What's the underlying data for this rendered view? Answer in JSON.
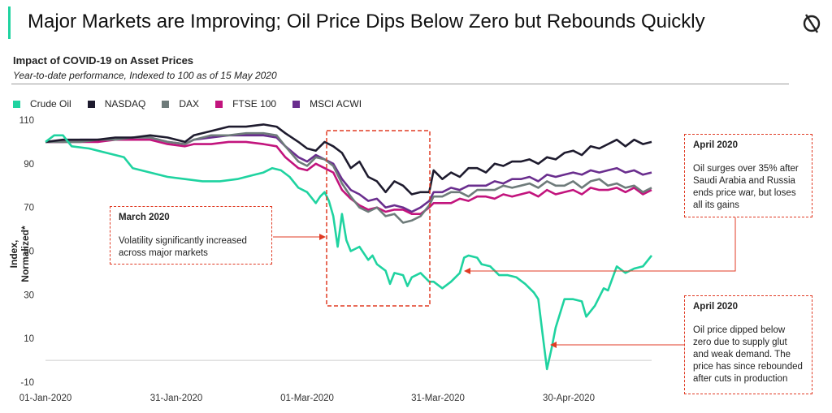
{
  "page": {
    "title": "Major Markets are Improving; Oil Price Dips Below Zero but Rebounds Quickly",
    "logo_icon": "circle-slash-logo-icon",
    "accent_color": "#1fd3a0"
  },
  "chart_data": {
    "type": "line",
    "title": "Impact of COVID-19 on Asset Prices",
    "subtitle": "Year-to-date performance, Indexed to 100 as of 15 May 2020",
    "ylabel": "Index, Normalized*",
    "xlabel": "",
    "ylim": [
      -10,
      110
    ],
    "yticks": [
      110,
      90,
      70,
      50,
      30,
      10,
      -10
    ],
    "xlim": [
      0,
      135
    ],
    "xticks": [
      {
        "day": 0,
        "label": "01-Jan-2020"
      },
      {
        "day": 30,
        "label": "31-Jan-2020"
      },
      {
        "day": 60,
        "label": "01-Mar-2020"
      },
      {
        "day": 90,
        "label": "31-Mar-2020"
      },
      {
        "day": 120,
        "label": "30-Apr-2020"
      }
    ],
    "legend_position": "top-left",
    "series": [
      {
        "name": "Crude Oil",
        "color": "#1fd3a0",
        "points": [
          [
            0,
            100
          ],
          [
            2,
            103
          ],
          [
            4,
            103
          ],
          [
            6,
            98
          ],
          [
            10,
            97
          ],
          [
            14,
            95
          ],
          [
            18,
            93
          ],
          [
            20,
            88
          ],
          [
            24,
            86
          ],
          [
            28,
            84
          ],
          [
            32,
            83
          ],
          [
            36,
            82
          ],
          [
            40,
            82
          ],
          [
            44,
            83
          ],
          [
            48,
            85
          ],
          [
            50,
            86
          ],
          [
            52,
            88
          ],
          [
            54,
            87
          ],
          [
            56,
            84
          ],
          [
            58,
            79
          ],
          [
            60,
            77
          ],
          [
            62,
            72
          ],
          [
            63,
            75
          ],
          [
            64,
            77
          ],
          [
            65,
            73
          ],
          [
            66,
            66
          ],
          [
            67,
            52
          ],
          [
            68,
            67
          ],
          [
            69,
            55
          ],
          [
            70,
            50
          ],
          [
            72,
            52
          ],
          [
            74,
            46
          ],
          [
            75,
            48
          ],
          [
            76,
            44
          ],
          [
            78,
            41
          ],
          [
            79,
            35
          ],
          [
            80,
            40
          ],
          [
            82,
            39
          ],
          [
            83,
            34
          ],
          [
            84,
            38
          ],
          [
            86,
            40
          ],
          [
            88,
            36
          ],
          [
            89,
            36
          ],
          [
            91,
            33
          ],
          [
            93,
            36
          ],
          [
            95,
            40
          ],
          [
            96,
            47
          ],
          [
            97,
            48
          ],
          [
            99,
            47
          ],
          [
            100,
            44
          ],
          [
            102,
            43
          ],
          [
            104,
            39
          ],
          [
            106,
            39
          ],
          [
            108,
            38
          ],
          [
            110,
            35
          ],
          [
            112,
            31
          ],
          [
            113,
            28
          ],
          [
            114,
            12
          ],
          [
            115,
            -4
          ],
          [
            116,
            5
          ],
          [
            117,
            15
          ],
          [
            119,
            28
          ],
          [
            121,
            28
          ],
          [
            123,
            27
          ],
          [
            124,
            20
          ],
          [
            126,
            25
          ],
          [
            128,
            33
          ],
          [
            129,
            32
          ],
          [
            131,
            43
          ],
          [
            133,
            40
          ],
          [
            135,
            42
          ],
          [
            137,
            43
          ],
          [
            139,
            48
          ]
        ]
      },
      {
        "name": "NASDAQ",
        "color": "#1e1b2e",
        "points": [
          [
            0,
            100
          ],
          [
            4,
            101
          ],
          [
            8,
            101
          ],
          [
            12,
            101
          ],
          [
            16,
            102
          ],
          [
            20,
            102
          ],
          [
            24,
            103
          ],
          [
            28,
            102
          ],
          [
            32,
            100
          ],
          [
            34,
            103
          ],
          [
            38,
            105
          ],
          [
            42,
            107
          ],
          [
            46,
            107
          ],
          [
            50,
            108
          ],
          [
            53,
            107
          ],
          [
            55,
            104
          ],
          [
            58,
            100
          ],
          [
            60,
            97
          ],
          [
            62,
            96
          ],
          [
            64,
            100
          ],
          [
            66,
            98
          ],
          [
            68,
            95
          ],
          [
            70,
            88
          ],
          [
            72,
            91
          ],
          [
            74,
            84
          ],
          [
            76,
            82
          ],
          [
            78,
            77
          ],
          [
            80,
            82
          ],
          [
            82,
            80
          ],
          [
            84,
            76
          ],
          [
            86,
            77
          ],
          [
            88,
            77
          ],
          [
            89,
            87
          ],
          [
            91,
            83
          ],
          [
            93,
            86
          ],
          [
            95,
            84
          ],
          [
            97,
            88
          ],
          [
            99,
            88
          ],
          [
            101,
            86
          ],
          [
            103,
            90
          ],
          [
            105,
            89
          ],
          [
            107,
            91
          ],
          [
            109,
            91
          ],
          [
            111,
            92
          ],
          [
            113,
            90
          ],
          [
            115,
            93
          ],
          [
            117,
            92
          ],
          [
            119,
            95
          ],
          [
            121,
            96
          ],
          [
            123,
            94
          ],
          [
            125,
            98
          ],
          [
            127,
            97
          ],
          [
            129,
            99
          ],
          [
            131,
            101
          ],
          [
            133,
            98
          ],
          [
            135,
            101
          ],
          [
            137,
            99
          ],
          [
            139,
            100
          ]
        ]
      },
      {
        "name": "DAX",
        "color": "#6e7b7a",
        "points": [
          [
            0,
            100
          ],
          [
            4,
            100
          ],
          [
            8,
            100
          ],
          [
            12,
            101
          ],
          [
            16,
            101
          ],
          [
            20,
            102
          ],
          [
            24,
            102
          ],
          [
            28,
            100
          ],
          [
            32,
            99
          ],
          [
            34,
            101
          ],
          [
            38,
            103
          ],
          [
            42,
            103
          ],
          [
            46,
            104
          ],
          [
            50,
            104
          ],
          [
            53,
            103
          ],
          [
            55,
            98
          ],
          [
            58,
            91
          ],
          [
            60,
            89
          ],
          [
            62,
            93
          ],
          [
            64,
            92
          ],
          [
            66,
            89
          ],
          [
            68,
            81
          ],
          [
            70,
            75
          ],
          [
            72,
            70
          ],
          [
            74,
            68
          ],
          [
            76,
            70
          ],
          [
            78,
            66
          ],
          [
            80,
            67
          ],
          [
            82,
            63
          ],
          [
            84,
            64
          ],
          [
            86,
            66
          ],
          [
            88,
            71
          ],
          [
            89,
            75
          ],
          [
            91,
            75
          ],
          [
            93,
            77
          ],
          [
            95,
            77
          ],
          [
            97,
            75
          ],
          [
            99,
            78
          ],
          [
            101,
            78
          ],
          [
            103,
            78
          ],
          [
            105,
            80
          ],
          [
            107,
            79
          ],
          [
            109,
            80
          ],
          [
            111,
            81
          ],
          [
            113,
            79
          ],
          [
            115,
            82
          ],
          [
            117,
            80
          ],
          [
            119,
            80
          ],
          [
            121,
            82
          ],
          [
            123,
            79
          ],
          [
            125,
            82
          ],
          [
            127,
            83
          ],
          [
            129,
            80
          ],
          [
            131,
            81
          ],
          [
            133,
            79
          ],
          [
            135,
            80
          ],
          [
            137,
            77
          ],
          [
            139,
            79
          ]
        ]
      },
      {
        "name": "FTSE 100",
        "color": "#c2147d",
        "points": [
          [
            0,
            100
          ],
          [
            4,
            100
          ],
          [
            8,
            100
          ],
          [
            12,
            100
          ],
          [
            16,
            101
          ],
          [
            20,
            101
          ],
          [
            24,
            101
          ],
          [
            28,
            99
          ],
          [
            32,
            98
          ],
          [
            34,
            99
          ],
          [
            38,
            99
          ],
          [
            42,
            100
          ],
          [
            46,
            100
          ],
          [
            50,
            99
          ],
          [
            53,
            98
          ],
          [
            55,
            93
          ],
          [
            58,
            88
          ],
          [
            60,
            87
          ],
          [
            62,
            90
          ],
          [
            64,
            88
          ],
          [
            66,
            86
          ],
          [
            68,
            78
          ],
          [
            70,
            74
          ],
          [
            72,
            71
          ],
          [
            74,
            69
          ],
          [
            76,
            70
          ],
          [
            78,
            68
          ],
          [
            80,
            69
          ],
          [
            82,
            69
          ],
          [
            84,
            67
          ],
          [
            86,
            67
          ],
          [
            88,
            70
          ],
          [
            89,
            72
          ],
          [
            91,
            72
          ],
          [
            93,
            72
          ],
          [
            95,
            74
          ],
          [
            97,
            73
          ],
          [
            99,
            75
          ],
          [
            101,
            75
          ],
          [
            103,
            74
          ],
          [
            105,
            76
          ],
          [
            107,
            75
          ],
          [
            109,
            76
          ],
          [
            111,
            77
          ],
          [
            113,
            75
          ],
          [
            115,
            78
          ],
          [
            117,
            76
          ],
          [
            119,
            77
          ],
          [
            121,
            78
          ],
          [
            123,
            76
          ],
          [
            125,
            79
          ],
          [
            127,
            78
          ],
          [
            129,
            78
          ],
          [
            131,
            79
          ],
          [
            133,
            77
          ],
          [
            135,
            79
          ],
          [
            137,
            76
          ],
          [
            139,
            78
          ]
        ]
      },
      {
        "name": "MSCI ACWI",
        "color": "#6a2e8e",
        "points": [
          [
            0,
            100
          ],
          [
            4,
            100
          ],
          [
            8,
            101
          ],
          [
            12,
            101
          ],
          [
            16,
            101
          ],
          [
            20,
            102
          ],
          [
            24,
            102
          ],
          [
            28,
            100
          ],
          [
            32,
            99
          ],
          [
            34,
            101
          ],
          [
            38,
            102
          ],
          [
            42,
            103
          ],
          [
            46,
            103
          ],
          [
            50,
            103
          ],
          [
            53,
            102
          ],
          [
            55,
            98
          ],
          [
            58,
            93
          ],
          [
            60,
            91
          ],
          [
            62,
            94
          ],
          [
            64,
            92
          ],
          [
            66,
            90
          ],
          [
            68,
            83
          ],
          [
            70,
            78
          ],
          [
            72,
            76
          ],
          [
            74,
            73
          ],
          [
            76,
            74
          ],
          [
            78,
            70
          ],
          [
            80,
            71
          ],
          [
            82,
            70
          ],
          [
            84,
            68
          ],
          [
            86,
            70
          ],
          [
            88,
            73
          ],
          [
            89,
            77
          ],
          [
            91,
            77
          ],
          [
            93,
            79
          ],
          [
            95,
            78
          ],
          [
            97,
            80
          ],
          [
            99,
            80
          ],
          [
            101,
            80
          ],
          [
            103,
            82
          ],
          [
            105,
            81
          ],
          [
            107,
            83
          ],
          [
            109,
            83
          ],
          [
            111,
            84
          ],
          [
            113,
            82
          ],
          [
            115,
            85
          ],
          [
            117,
            84
          ],
          [
            119,
            85
          ],
          [
            121,
            86
          ],
          [
            123,
            85
          ],
          [
            125,
            87
          ],
          [
            127,
            86
          ],
          [
            129,
            87
          ],
          [
            131,
            88
          ],
          [
            133,
            86
          ],
          [
            135,
            87
          ],
          [
            137,
            85
          ],
          [
            139,
            86
          ]
        ]
      }
    ]
  },
  "callouts": [
    {
      "title": "March 2020",
      "text": "Volatility significantly increased across major markets"
    },
    {
      "title": "April 2020",
      "text": "Oil surges over 35%  after Saudi Arabia and Russia ends price war, but loses all its gains"
    },
    {
      "title": "April 2020",
      "text": "Oil price dipped below zero due to supply glut and weak demand. The price has since rebounded after cuts in production"
    }
  ],
  "colors": {
    "annotation": "#e03b24"
  }
}
